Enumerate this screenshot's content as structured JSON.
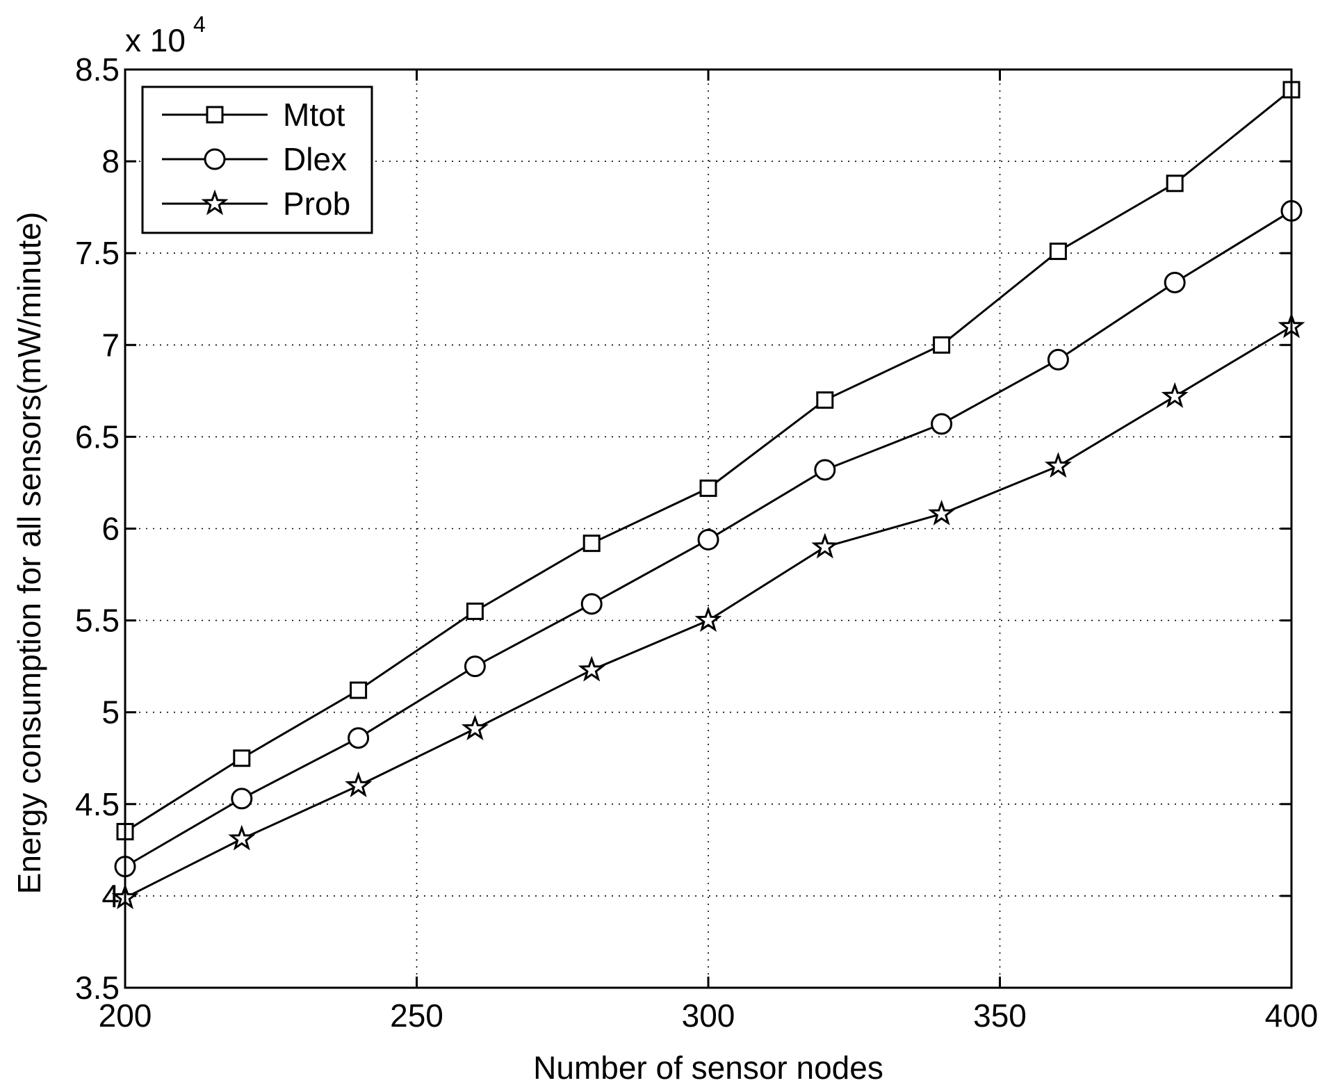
{
  "chart_data": {
    "type": "line",
    "xlabel": "Number of sensor nodes",
    "ylabel": "Energy consumption for all sensors(mW/minute)",
    "y_multiplier_label": {
      "base": "x 10",
      "exponent": "4"
    },
    "x": [
      200,
      220,
      240,
      260,
      280,
      300,
      320,
      340,
      360,
      380,
      400
    ],
    "xlim": [
      200,
      400
    ],
    "ylim": [
      3.5,
      8.5
    ],
    "xticks": [
      200,
      250,
      300,
      350,
      400
    ],
    "xtick_labels": [
      "200",
      "250",
      "300",
      "350",
      "400"
    ],
    "yticks": [
      3.5,
      4,
      4.5,
      5,
      5.5,
      6,
      6.5,
      7,
      7.5,
      8,
      8.5
    ],
    "ytick_labels": [
      "3.5",
      "4",
      "4.5",
      "5",
      "5.5",
      "6",
      "6.5",
      "7",
      "7.5",
      "8",
      "8.5"
    ],
    "grid": true,
    "legend_position": "top-left",
    "series": [
      {
        "name": "Mtot",
        "marker": "square",
        "values": [
          4.35,
          4.75,
          5.12,
          5.55,
          5.92,
          6.22,
          6.7,
          7.0,
          7.51,
          7.88,
          8.39
        ]
      },
      {
        "name": "Dlex",
        "marker": "circle",
        "values": [
          4.16,
          4.53,
          4.86,
          5.25,
          5.59,
          5.94,
          6.32,
          6.57,
          6.92,
          7.34,
          7.73
        ]
      },
      {
        "name": "Prob",
        "marker": "star",
        "values": [
          3.99,
          4.31,
          4.6,
          4.91,
          5.23,
          5.5,
          5.9,
          6.08,
          6.34,
          6.72,
          7.1
        ]
      }
    ],
    "colors": {
      "line": "#000000",
      "marker_fill": "#ffffff",
      "background": "#ffffff"
    }
  }
}
